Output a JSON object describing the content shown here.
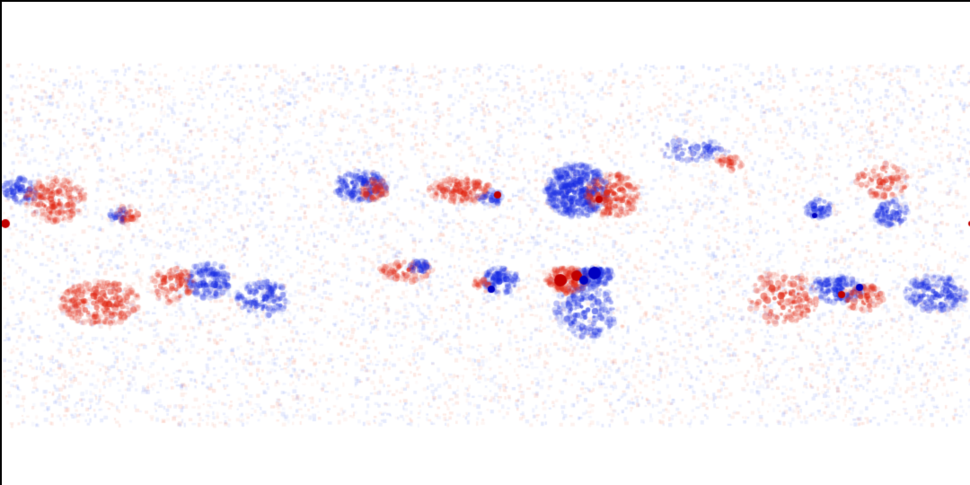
{
  "image": {
    "colors": {
      "positive": "#c00000",
      "negative": "#0000c0",
      "background": "#ffffff",
      "border": "#000000"
    }
  }
}
